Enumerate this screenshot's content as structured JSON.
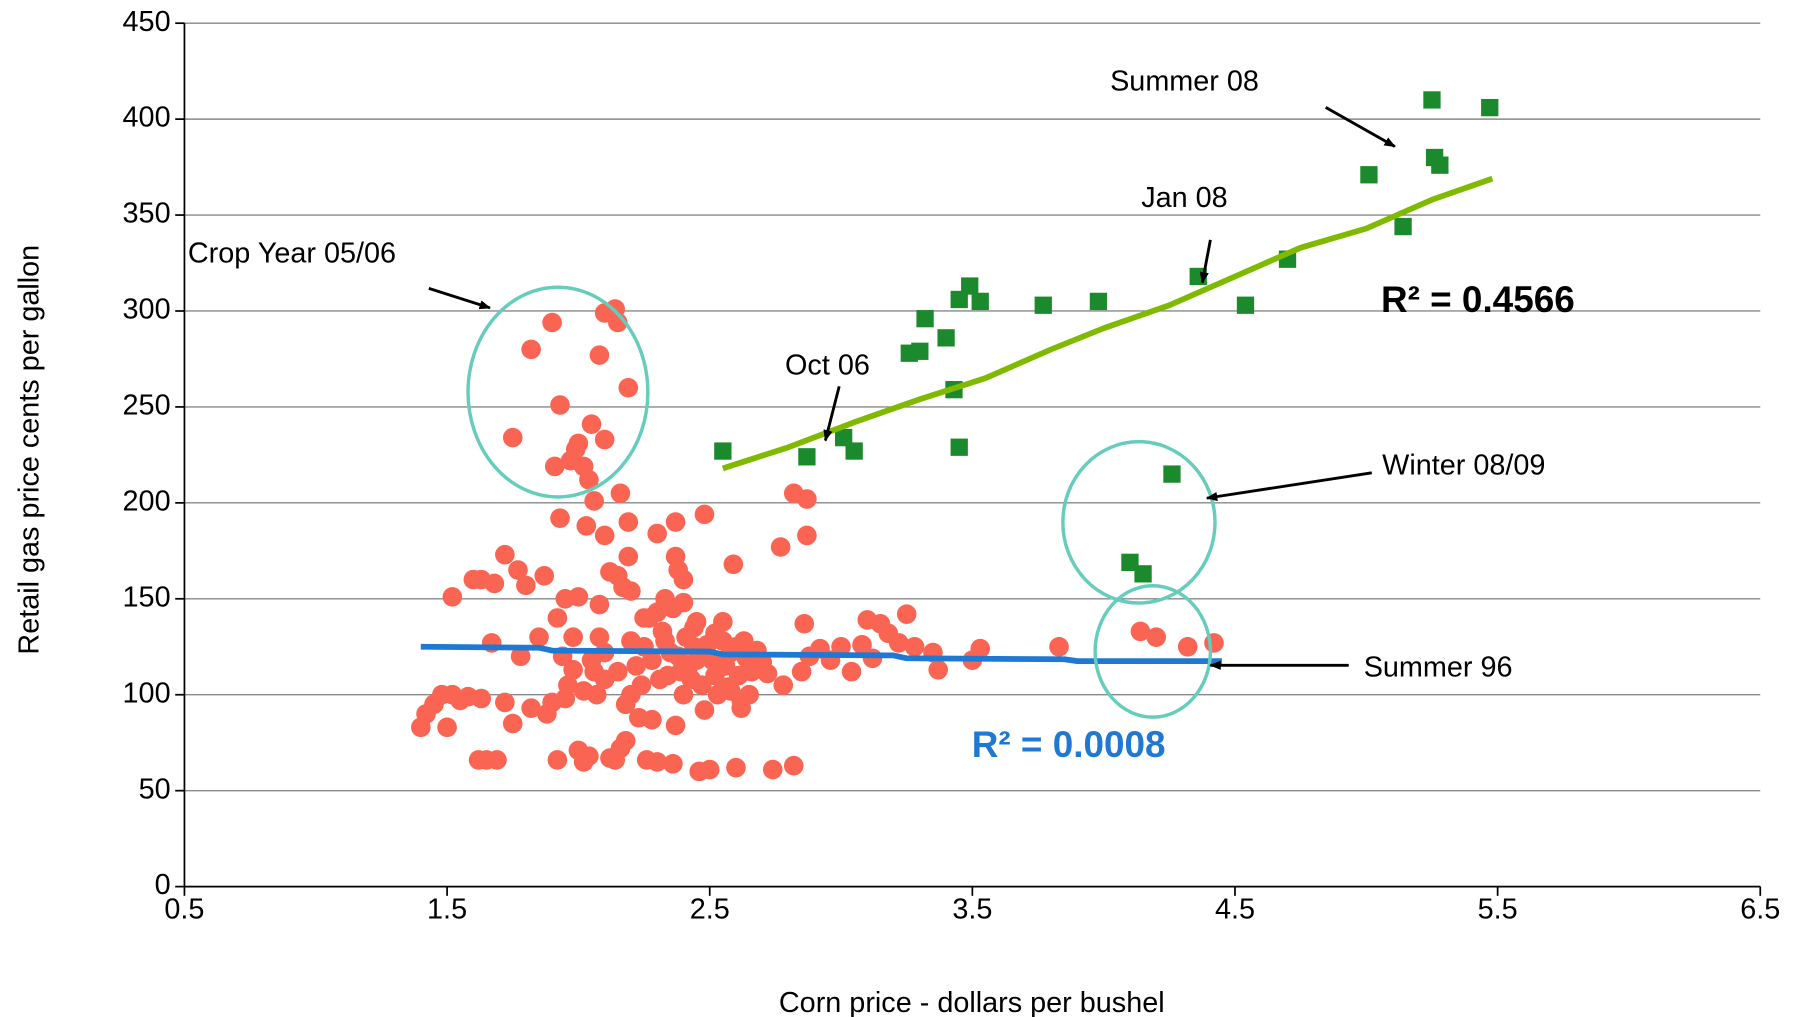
{
  "chart_data": {
    "type": "scatter",
    "x_label": "Corn price - dollars per bushel",
    "y_label": "Retail gas price cents per gallon",
    "xlim": [
      0.5,
      6.5
    ],
    "xticks": [
      0.5,
      1.5,
      2.5,
      3.5,
      4.5,
      5.5,
      6.5
    ],
    "ylim": [
      0,
      450
    ],
    "yticks": [
      0,
      50,
      100,
      150,
      200,
      250,
      300,
      350,
      400,
      450
    ],
    "grid": true,
    "annotations": [
      "Summer 08",
      "Jan 08",
      "Crop Year 05/06",
      "Oct 06",
      "Winter 08/09",
      "Summer 96",
      "R² = 0.4566",
      "R² = 0.0008"
    ],
    "series": [
      {
        "kind": "points",
        "marker": "circle",
        "color": "#fa6452",
        "x": [
          1.75,
          1.82,
          1.9,
          1.93,
          1.91,
          1.97,
          2.0,
          2.02,
          2.05,
          2.1,
          2.08,
          2.1,
          2.14,
          2.15,
          2.19,
          1.99,
          2.04,
          2.06,
          2.16,
          1.93,
          2.03,
          2.1,
          2.19,
          2.19,
          2.3,
          2.37,
          2.37,
          2.4,
          2.38,
          2.48,
          2.59,
          2.77,
          2.82,
          2.87,
          2.87,
          1.72,
          1.77,
          1.68,
          1.63,
          1.6,
          1.52,
          1.8,
          1.87,
          1.92,
          1.95,
          2.0,
          2.08,
          2.12,
          2.15,
          2.17,
          2.2,
          2.25,
          2.3,
          2.33,
          2.4,
          2.45,
          2.52,
          2.6,
          2.86,
          3.1,
          3.15,
          3.25,
          3.18,
          1.4,
          1.42,
          1.45,
          1.48,
          1.5,
          1.52,
          1.55,
          1.58,
          1.62,
          1.65,
          1.69,
          1.63,
          1.67,
          1.72,
          1.75,
          1.78,
          1.82,
          1.88,
          1.85,
          1.9,
          1.92,
          1.94,
          1.96,
          1.98,
          2.0,
          2.02,
          2.04,
          2.05,
          2.07,
          2.1,
          2.12,
          2.14,
          2.16,
          2.18,
          2.2,
          2.22,
          2.24,
          2.26,
          2.28,
          2.3,
          2.32,
          2.34,
          2.36,
          2.37,
          2.38,
          2.4,
          2.42,
          2.44,
          2.46,
          2.48,
          2.5,
          2.52,
          2.55,
          2.57,
          2.6,
          2.62,
          2.64,
          2.66,
          2.7,
          2.74,
          2.78,
          2.82,
          2.85,
          2.88,
          2.92,
          2.96,
          3.0,
          3.04,
          3.08,
          3.12,
          3.22,
          3.28,
          3.35,
          3.37,
          3.5,
          3.53,
          3.83,
          4.14,
          4.2,
          4.32,
          4.42,
          2.25,
          2.28,
          2.31,
          2.33,
          2.35,
          2.39,
          2.41,
          2.43,
          2.45,
          2.47,
          2.49,
          2.51,
          2.53,
          2.56,
          2.58,
          2.61,
          2.63,
          2.65,
          2.68,
          2.72,
          2.2,
          2.15,
          2.1,
          2.08,
          1.98,
          1.95,
          2.02,
          2.06,
          2.18,
          2.23,
          2.27,
          2.36,
          2.44,
          2.55,
          2.58,
          2.62
        ],
        "values": [
          234,
          280,
          294,
          251,
          219,
          222,
          231,
          219,
          241,
          233,
          277,
          299,
          301,
          294,
          260,
          228,
          212,
          201,
          205,
          192,
          188,
          183,
          190,
          172,
          184,
          190,
          172,
          160,
          165,
          194,
          168,
          177,
          205,
          202,
          183,
          173,
          165,
          158,
          160,
          160,
          151,
          157,
          162,
          140,
          150,
          151,
          147,
          164,
          162,
          156,
          154,
          140,
          143,
          150,
          148,
          138,
          132,
          125,
          137,
          139,
          137,
          142,
          132,
          83,
          90,
          95,
          100,
          83,
          100,
          97,
          99,
          66,
          66,
          66,
          98,
          127,
          96,
          85,
          120,
          93,
          90,
          130,
          96,
          66,
          120,
          105,
          113,
          71,
          65,
          68,
          118,
          100,
          108,
          67,
          66,
          72,
          76,
          128,
          115,
          105,
          66,
          87,
          65,
          133,
          110,
          64,
          84,
          120,
          100,
          115,
          125,
          60,
          92,
          61,
          110,
          128,
          104,
          62,
          97,
          119,
          112,
          117,
          61,
          105,
          63,
          112,
          120,
          124,
          118,
          125,
          112,
          126,
          119,
          127,
          125,
          122,
          113,
          118,
          124,
          125,
          133,
          130,
          125,
          127,
          125,
          118,
          108,
          128,
          122,
          112,
          130,
          108,
          118,
          105,
          126,
          118,
          100,
          115,
          122,
          110,
          128,
          100,
          123,
          111,
          100,
          112,
          122,
          130,
          130,
          98,
          102,
          112,
          95,
          88,
          140,
          145,
          135,
          138,
          102,
          93
        ]
      },
      {
        "kind": "line",
        "color": "#1f78d1",
        "x": [
          1.4,
          1.85,
          1.9,
          2.5,
          2.55,
          3.2,
          3.25,
          3.85,
          3.9,
          4.45
        ],
        "values": [
          125,
          124.5,
          123,
          122.5,
          121,
          120.5,
          119,
          118.5,
          117.5,
          117.5
        ]
      },
      {
        "kind": "points",
        "marker": "square",
        "color": "#1b8a2c",
        "x": [
          2.55,
          2.87,
          3.01,
          3.05,
          3.26,
          3.3,
          3.32,
          3.4,
          3.45,
          3.49,
          3.53,
          3.43,
          3.45,
          3.77,
          3.98,
          4.36,
          4.54,
          4.7,
          5.01,
          5.14,
          5.25,
          5.26,
          5.28,
          5.47,
          4.26,
          4.1,
          4.15
        ],
        "values": [
          227,
          224,
          234,
          227,
          278,
          279,
          296,
          286,
          306,
          313,
          305,
          259,
          229,
          303,
          305,
          318,
          303,
          327,
          371,
          344,
          410,
          380,
          376,
          406,
          215,
          169,
          163
        ]
      },
      {
        "kind": "line",
        "color": "#7fba00",
        "x": [
          2.55,
          2.8,
          3.05,
          3.3,
          3.55,
          3.8,
          4.0,
          4.25,
          4.5,
          4.75,
          5.0,
          5.25,
          5.48
        ],
        "values": [
          218,
          229,
          242,
          254,
          265,
          280,
          291,
          303,
          318,
          333,
          343,
          358,
          369
        ]
      }
    ]
  }
}
